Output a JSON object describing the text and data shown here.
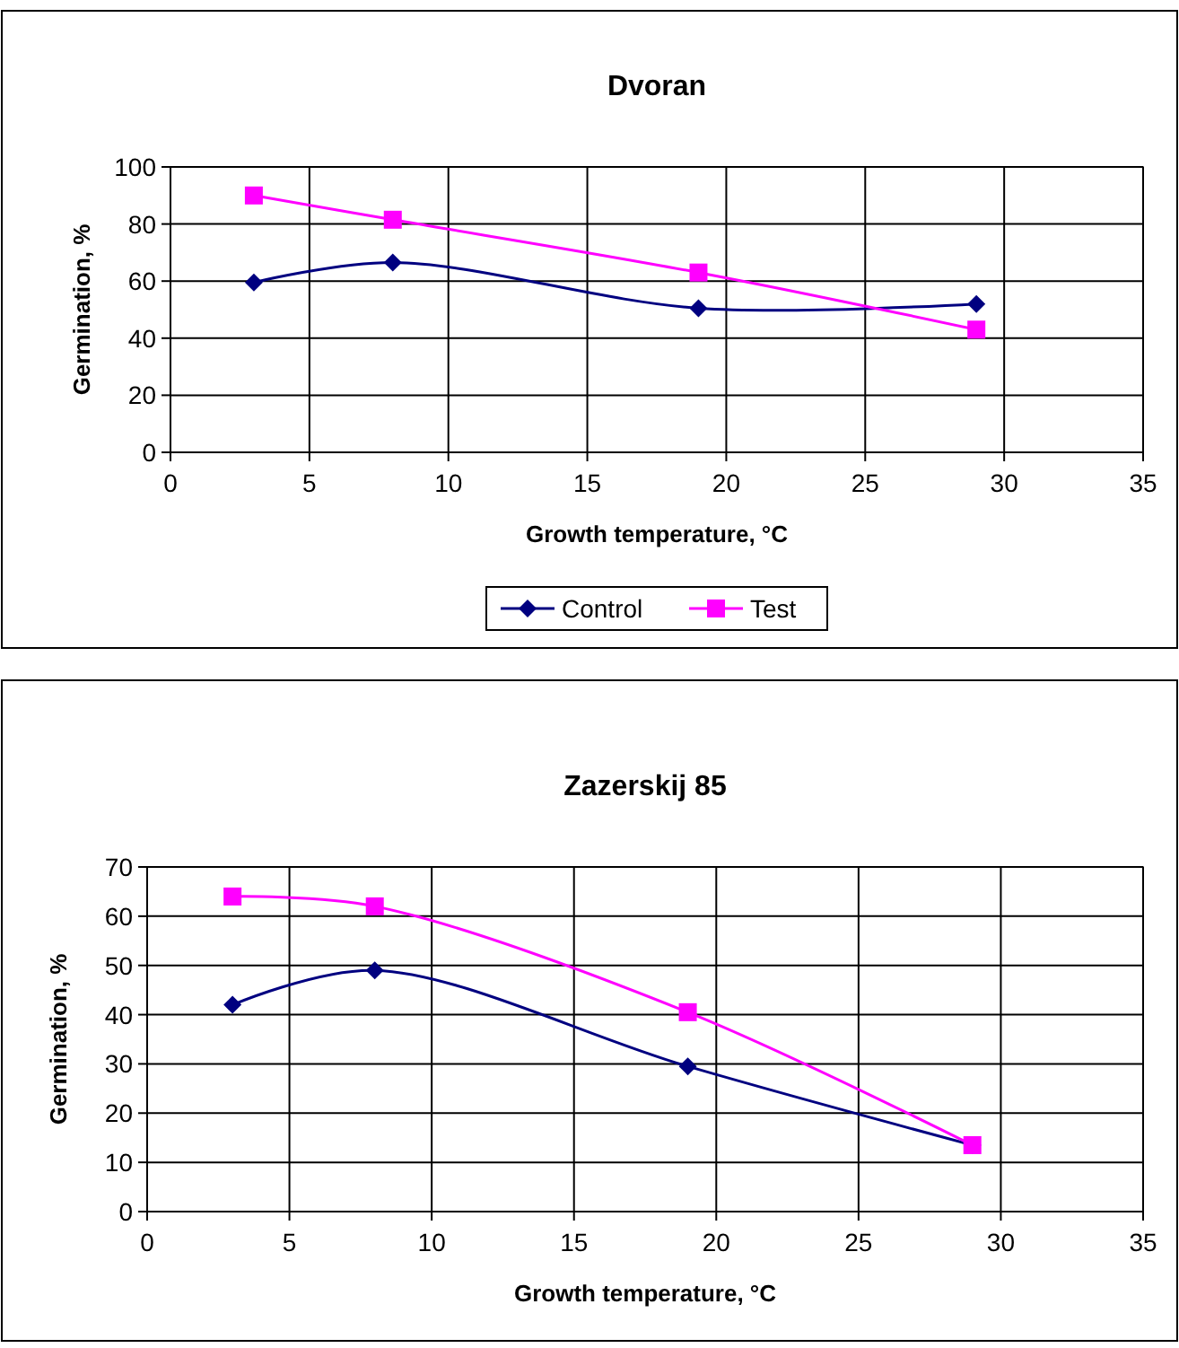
{
  "chart_data": [
    {
      "type": "line",
      "title": "Dvoran",
      "xlabel": "Growth temperature, °C",
      "ylabel": "Germination, %",
      "x": [
        3,
        8,
        19,
        29
      ],
      "series": [
        {
          "name": "Control",
          "color": "#000080",
          "values": [
            59.5,
            66.5,
            50.5,
            52
          ],
          "marker": "diamond"
        },
        {
          "name": "Test",
          "color": "#ff00ff",
          "values": [
            90,
            81.5,
            63,
            43
          ],
          "marker": "square"
        }
      ],
      "xlim": [
        0,
        35
      ],
      "xticks": [
        0,
        5,
        10,
        15,
        20,
        25,
        30,
        35
      ],
      "ylim": [
        0,
        100
      ],
      "yticks": [
        0,
        20,
        40,
        60,
        80,
        100
      ],
      "grid": true,
      "legend": "bottom"
    },
    {
      "type": "line",
      "title": "Zazerskij 85",
      "xlabel": "Growth temperature, °C",
      "ylabel": "Germination, %",
      "x": [
        3,
        8,
        19,
        29
      ],
      "series": [
        {
          "color": "#000080",
          "values": [
            42,
            49,
            29.5,
            13.5
          ],
          "marker": "diamond"
        },
        {
          "color": "#ff00ff",
          "values": [
            64,
            62,
            40.5,
            13.5
          ],
          "marker": "square"
        }
      ],
      "xlim": [
        0,
        35
      ],
      "xticks": [
        0,
        5,
        10,
        15,
        20,
        25,
        30,
        35
      ],
      "ylim": [
        0,
        70
      ],
      "yticks": [
        0,
        10,
        20,
        30,
        40,
        50,
        60,
        70
      ],
      "grid": true,
      "legend": false
    }
  ]
}
